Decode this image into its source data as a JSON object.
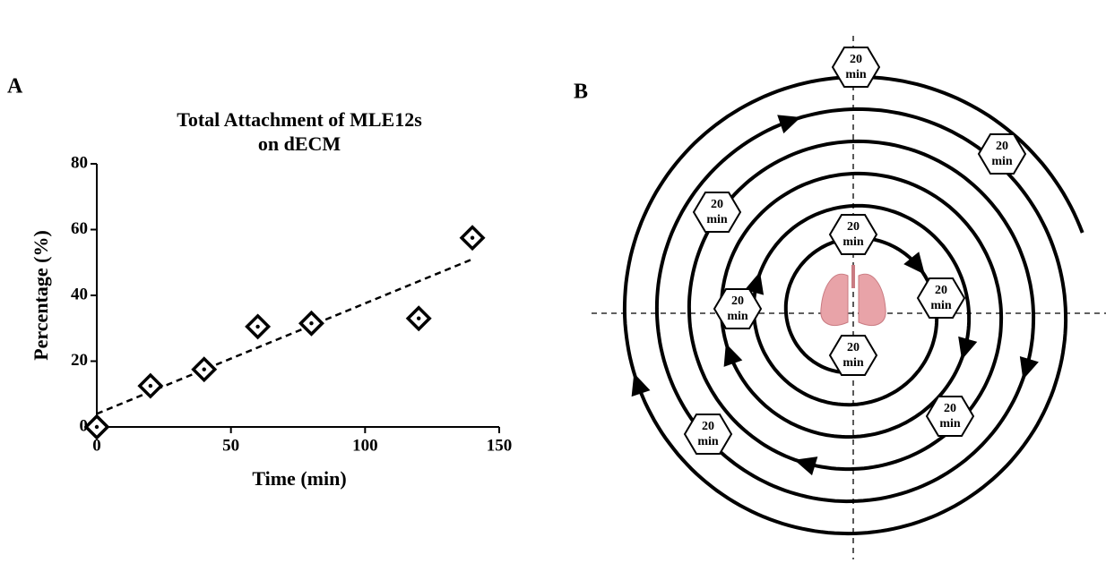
{
  "chart_data": {
    "type": "scatter",
    "panel_label": "A",
    "title": [
      "Total Attachment of MLE12s",
      "on dECM"
    ],
    "x_label": "Time (min)",
    "y_label": "Percentage (%)",
    "x": [
      0,
      20,
      40,
      60,
      80,
      120,
      140
    ],
    "values": [
      0,
      12.5,
      17.5,
      30.5,
      31.5,
      33,
      57.5
    ],
    "color": "#000000",
    "trendline": {
      "x": [
        0,
        140
      ],
      "y": [
        4,
        51
      ]
    },
    "xlim": [
      0,
      150
    ],
    "xticks": [
      0,
      50,
      100,
      150
    ],
    "ylim": [
      0,
      80
    ],
    "yticks": [
      0,
      20,
      40,
      60,
      80
    ]
  },
  "diagram": {
    "label": "B",
    "nodes": [
      {
        "lines": [
          "20",
          "min"
        ]
      },
      {
        "lines": [
          "20",
          "min"
        ]
      },
      {
        "lines": [
          "20",
          "min"
        ]
      },
      {
        "lines": [
          "20",
          "min"
        ]
      },
      {
        "lines": [
          "20",
          "min"
        ]
      },
      {
        "lines": [
          "20",
          "min"
        ]
      },
      {
        "lines": [
          "20",
          "min"
        ]
      },
      {
        "lines": [
          "20",
          "min"
        ]
      },
      {
        "lines": [
          "20",
          "min"
        ]
      }
    ]
  }
}
